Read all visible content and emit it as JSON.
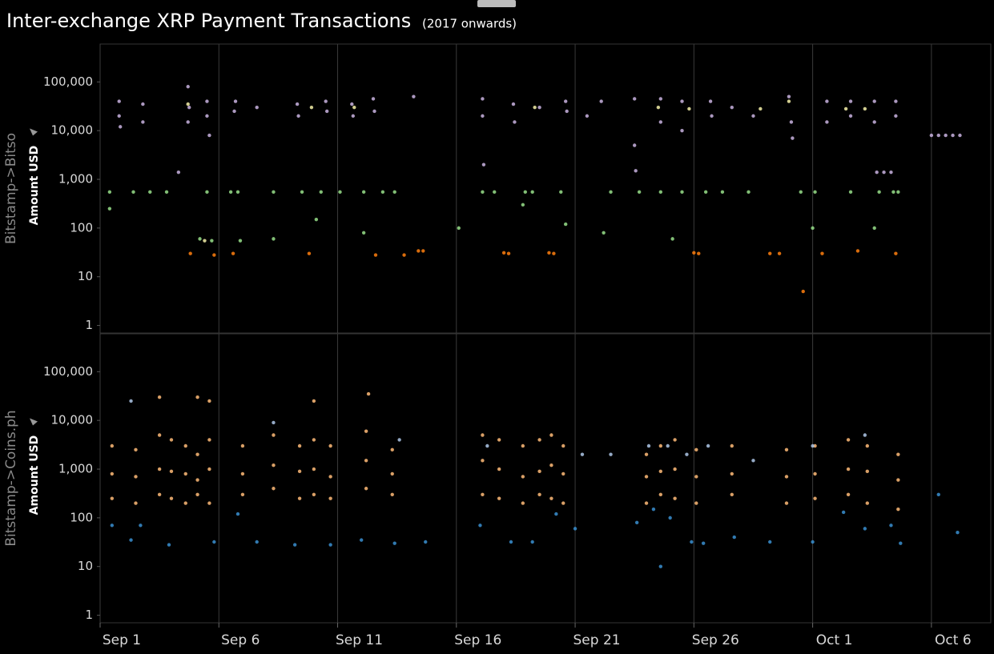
{
  "title": "Inter-exchange XRP Payment Transactions",
  "subtitle": "(2017 onwards)",
  "chart_data": [
    {
      "type": "scatter",
      "facet": "Bitstamp->Bitso",
      "ylabel": "Amount USD",
      "log_y": true,
      "grid": true,
      "xlim": [
        1,
        38.5
      ],
      "ylim": [
        0.7,
        600000
      ],
      "yticks": [
        1,
        10,
        100,
        {
          "value": 1000,
          "label": "1,000"
        },
        {
          "value": 10000,
          "label": "10,000"
        },
        {
          "value": 100000,
          "label": "100,000"
        }
      ],
      "series": [
        {
          "color": "#c9b3e0",
          "x": [
            1.8,
            1.8,
            1.85,
            2.8,
            2.8,
            4.7,
            4.75,
            4.7,
            5.5,
            5.5,
            5.6,
            6.7,
            6.65,
            7.6,
            9.3,
            9.35,
            10.5,
            10.55,
            11.6,
            11.65,
            12.5,
            12.55,
            14.2,
            17.1,
            17.1,
            17.15,
            18.4,
            18.45,
            19.5,
            20.6,
            20.65,
            21.5,
            22.1,
            23.5,
            23.5,
            23.55,
            24.6,
            24.6,
            25.5,
            25.5,
            26.7,
            26.75,
            27.6,
            28.5,
            30.0,
            30.1,
            30.15,
            31.6,
            31.6,
            32.6,
            32.6,
            33.6,
            33.6,
            34.5,
            34.5,
            36.0,
            36.3,
            36.6,
            36.9,
            37.2,
            4.3,
            33.7,
            34.0,
            34.3
          ],
          "values": [
            40000,
            20000,
            12000,
            35000,
            15000,
            80000,
            30000,
            15000,
            40000,
            20000,
            8000,
            40000,
            25000,
            30000,
            35000,
            20000,
            40000,
            25000,
            35000,
            20000,
            45000,
            25000,
            50000,
            45000,
            20000,
            2000,
            35000,
            15000,
            30000,
            40000,
            25000,
            20000,
            40000,
            45000,
            5000,
            1500,
            45000,
            15000,
            40000,
            10000,
            40000,
            20000,
            30000,
            20000,
            50000,
            15000,
            7000,
            40000,
            15000,
            40000,
            20000,
            40000,
            15000,
            40000,
            20000,
            8000,
            8000,
            8000,
            8000,
            8000,
            1400,
            1400,
            1400,
            1400
          ]
        },
        {
          "color": "#98df8a",
          "x": [
            1.4,
            2.4,
            3.1,
            3.8,
            5.5,
            6.5,
            6.8,
            8.3,
            9.5,
            10.3,
            11.1,
            12.1,
            12.9,
            13.4,
            17.1,
            17.6,
            18.9,
            19.2,
            20.4,
            22.5,
            23.7,
            24.6,
            25.5,
            26.5,
            27.2,
            28.3,
            30.5,
            31.1,
            32.6,
            33.8,
            34.4,
            34.6,
            1.4,
            5.2,
            5.7,
            6.9,
            8.3,
            10.1,
            12.1,
            16.1,
            18.8,
            20.6,
            22.2,
            25.1,
            31.0,
            33.6
          ],
          "values": [
            550,
            550,
            550,
            550,
            550,
            550,
            550,
            550,
            550,
            550,
            550,
            550,
            550,
            550,
            550,
            550,
            550,
            550,
            550,
            550,
            550,
            550,
            550,
            550,
            550,
            550,
            550,
            550,
            550,
            550,
            550,
            550,
            250,
            60,
            55,
            55,
            60,
            150,
            80,
            100,
            300,
            120,
            80,
            60,
            100,
            100
          ]
        },
        {
          "color": "#ff7f0e",
          "x": [
            4.8,
            5.8,
            6.6,
            9.8,
            12.6,
            13.8,
            14.4,
            14.6,
            18.0,
            18.2,
            19.9,
            20.1,
            26.0,
            26.2,
            29.2,
            29.6,
            31.4,
            32.9,
            34.5,
            30.6
          ],
          "values": [
            30,
            28,
            30,
            30,
            28,
            28,
            34,
            34,
            31,
            30,
            31,
            30,
            31,
            30,
            30,
            30,
            30,
            34,
            30,
            5
          ]
        },
        {
          "color": "#f4f0a8",
          "x": [
            4.7,
            5.4,
            9.9,
            11.7,
            19.3,
            24.5,
            25.8,
            28.8,
            30.0,
            32.4,
            33.2
          ],
          "values": [
            35000,
            55,
            30000,
            30000,
            30000,
            30000,
            28000,
            28000,
            40000,
            28000,
            28000
          ]
        }
      ]
    },
    {
      "type": "scatter",
      "facet": "Bitstamp->Coins.ph",
      "ylabel": "Amount USD",
      "log_y": true,
      "grid": true,
      "xlim": [
        1,
        38.5
      ],
      "ylim": [
        0.7,
        600000
      ],
      "xticks": [
        {
          "value": 1,
          "label": "Sep 1"
        },
        {
          "value": 6,
          "label": "Sep 6"
        },
        {
          "value": 11,
          "label": "Sep 11"
        },
        {
          "value": 16,
          "label": "Sep 16"
        },
        {
          "value": 21,
          "label": "Sep 21"
        },
        {
          "value": 26,
          "label": "Sep 26"
        },
        {
          "value": 31,
          "label": "Oct 1"
        },
        {
          "value": 36,
          "label": "Oct 6"
        }
      ],
      "yticks": [
        1,
        10,
        100,
        {
          "value": 1000,
          "label": "1,000"
        },
        {
          "value": 10000,
          "label": "10,000"
        },
        {
          "value": 100000,
          "label": "100,000"
        }
      ],
      "series": [
        {
          "color": "#ffbb78",
          "x": [
            1.5,
            1.5,
            1.5,
            2.5,
            2.5,
            2.5,
            3.5,
            3.5,
            3.5,
            4.0,
            4.0,
            4.0,
            4.6,
            4.6,
            4.6,
            5.1,
            5.1,
            5.1,
            5.6,
            5.6,
            5.6,
            7.0,
            7.0,
            7.0,
            8.3,
            8.3,
            8.3,
            9.4,
            9.4,
            9.4,
            10.0,
            10.0,
            10.0,
            10.7,
            10.7,
            10.7,
            12.2,
            12.2,
            12.2,
            13.3,
            13.3,
            13.3,
            17.1,
            17.1,
            17.1,
            17.8,
            17.8,
            17.8,
            18.8,
            18.8,
            18.8,
            19.5,
            19.5,
            19.5,
            20.0,
            20.0,
            20.0,
            20.5,
            20.5,
            20.5,
            24.0,
            24.0,
            24.0,
            24.6,
            24.6,
            24.6,
            25.2,
            25.2,
            25.2,
            26.1,
            26.1,
            26.1,
            27.6,
            27.6,
            27.6,
            29.9,
            29.9,
            29.9,
            31.1,
            31.1,
            31.1,
            32.5,
            32.5,
            32.5,
            33.3,
            33.3,
            33.3,
            34.6,
            34.6,
            34.6,
            3.5,
            5.1,
            5.6,
            10.0,
            12.3
          ],
          "values": [
            3000,
            800,
            250,
            2500,
            700,
            200,
            5000,
            1000,
            300,
            4000,
            900,
            250,
            3000,
            800,
            200,
            2000,
            600,
            300,
            4000,
            1000,
            200,
            3000,
            800,
            300,
            5000,
            1200,
            400,
            3000,
            900,
            250,
            4000,
            1000,
            300,
            3000,
            700,
            250,
            6000,
            1500,
            400,
            2500,
            800,
            300,
            5000,
            1500,
            300,
            4000,
            1000,
            250,
            3000,
            700,
            200,
            4000,
            900,
            300,
            5000,
            1200,
            250,
            3000,
            800,
            200,
            2000,
            700,
            200,
            3000,
            900,
            300,
            4000,
            1000,
            250,
            2500,
            700,
            200,
            3000,
            800,
            300,
            2500,
            700,
            200,
            3000,
            800,
            250,
            4000,
            1000,
            300,
            3000,
            900,
            200,
            2000,
            600,
            150,
            30000,
            30000,
            25000,
            25000,
            35000
          ]
        },
        {
          "color": "#3a8fd0",
          "x": [
            1.5,
            2.3,
            2.7,
            3.9,
            5.8,
            6.8,
            7.6,
            9.2,
            10.7,
            12.0,
            13.4,
            14.7,
            17.0,
            18.3,
            19.2,
            20.2,
            21.0,
            23.6,
            24.3,
            25.0,
            25.9,
            26.4,
            27.7,
            29.2,
            31.0,
            32.3,
            33.2,
            34.3,
            34.7,
            36.3,
            37.1,
            24.6
          ],
          "values": [
            70,
            35,
            70,
            28,
            32,
            120,
            32,
            28,
            28,
            35,
            30,
            32,
            70,
            32,
            32,
            120,
            60,
            80,
            150,
            100,
            32,
            30,
            40,
            32,
            32,
            130,
            60,
            70,
            30,
            300,
            50,
            10
          ]
        },
        {
          "color": "#aec7e8",
          "x": [
            2.3,
            8.3,
            13.6,
            17.3,
            21.3,
            22.5,
            24.1,
            24.9,
            25.7,
            26.6,
            28.5,
            31.0,
            33.2
          ],
          "values": [
            25000,
            9000,
            4000,
            3000,
            2000,
            2000,
            3000,
            3000,
            2000,
            3000,
            1500,
            3000,
            5000
          ]
        }
      ]
    }
  ]
}
